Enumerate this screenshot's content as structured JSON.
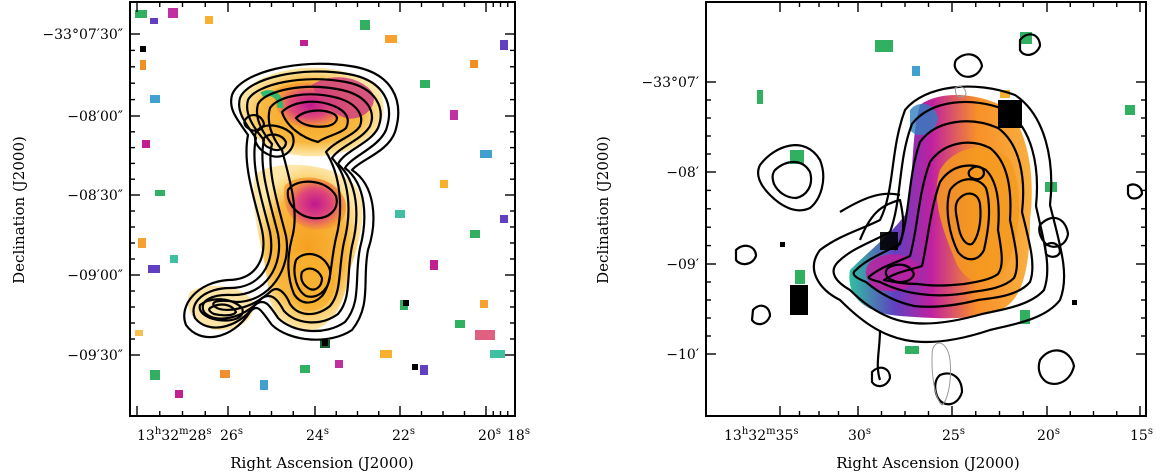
{
  "chart_data": [
    {
      "type": "heatmap",
      "xlabel": "Right Ascension (J2000)",
      "ylabel": "Declination (J2000)",
      "x_ticks": [
        {
          "pos": 137,
          "h": "13",
          "m": "32",
          "s": "28"
        },
        {
          "pos": 228,
          "s": "26"
        },
        {
          "pos": 315,
          "s": "24"
        },
        {
          "pos": 400,
          "s": "22"
        },
        {
          "pos": 486,
          "s": "20"
        },
        {
          "pos": 515,
          "s": "18"
        }
      ],
      "y_ticks": [
        {
          "pos": 34,
          "d": "−33°",
          "m": "07′",
          "s": "30″"
        },
        {
          "pos": 116,
          "d": "−",
          "m": "08′",
          "s": "00″"
        },
        {
          "pos": 195,
          "d": "−",
          "m": "08′",
          "s": "30″"
        },
        {
          "pos": 275,
          "d": "−",
          "m": "09′",
          "s": "00″"
        },
        {
          "pos": 355,
          "d": "−",
          "m": "09′",
          "s": "30″"
        }
      ]
    },
    {
      "type": "heatmap",
      "xlabel": "Right Ascension (J2000)",
      "ylabel": "Declination (J2000)",
      "x_ticks": [
        {
          "pos": 780,
          "h": "13",
          "m": "32",
          "s": "35"
        },
        {
          "pos": 858,
          "s": "30"
        },
        {
          "pos": 952,
          "s": "25"
        },
        {
          "pos": 1047,
          "s": "20"
        },
        {
          "pos": 1140,
          "s": "15"
        }
      ],
      "y_ticks": [
        {
          "pos": 82,
          "d": "−33°",
          "m": "07′"
        },
        {
          "pos": 172,
          "d": "−",
          "m": "08′"
        },
        {
          "pos": 264,
          "d": "−",
          "m": "09′"
        },
        {
          "pos": 354,
          "d": "−",
          "m": "10′"
        }
      ]
    }
  ]
}
